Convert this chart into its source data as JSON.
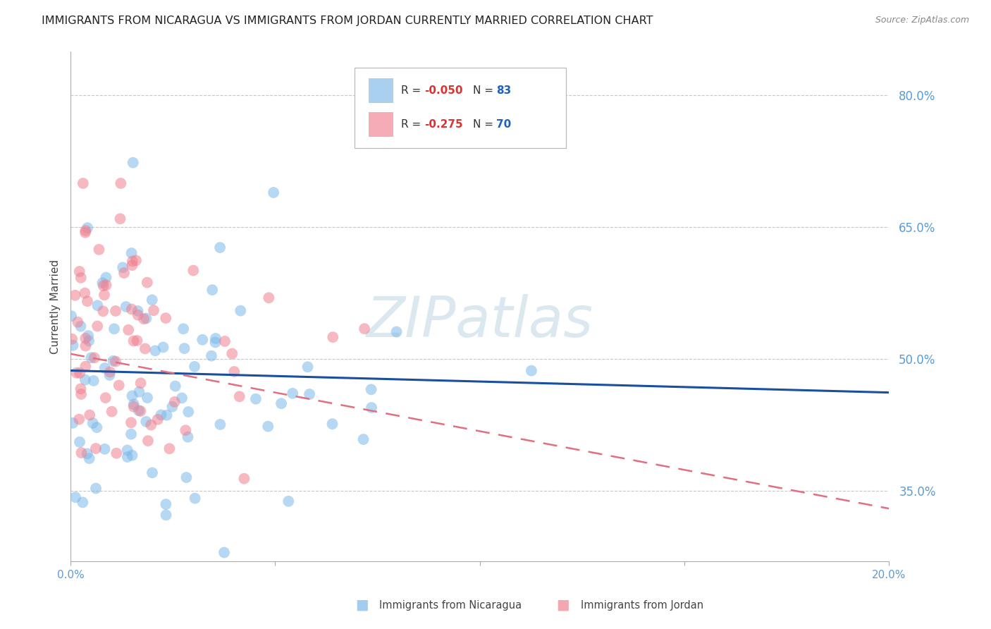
{
  "title": "IMMIGRANTS FROM NICARAGUA VS IMMIGRANTS FROM JORDAN CURRENTLY MARRIED CORRELATION CHART",
  "source": "Source: ZipAtlas.com",
  "ylabel": "Currently Married",
  "xlim": [
    0.0,
    0.2
  ],
  "ylim": [
    0.27,
    0.85
  ],
  "yticks": [
    0.35,
    0.5,
    0.65,
    0.8
  ],
  "ytick_labels": [
    "35.0%",
    "50.0%",
    "65.0%",
    "80.0%"
  ],
  "xticks": [
    0.0,
    0.05,
    0.1,
    0.15,
    0.2
  ],
  "xtick_labels": [
    "0.0%",
    "",
    "",
    "",
    "20.0%"
  ],
  "nicaragua_color": "#7db8e8",
  "jordan_color": "#f08090",
  "nicaragua_R": -0.05,
  "nicaragua_N": 83,
  "jordan_R": -0.275,
  "jordan_N": 70,
  "tick_color": "#5b9bd5",
  "grid_color": "#c8c8c8",
  "background_color": "#ffffff",
  "watermark": "ZIPatlas",
  "watermark_color": "#dce8f0",
  "title_fontsize": 11.5,
  "source_fontsize": 9,
  "legend_r1_text": "R = ",
  "legend_r1_val": "-0.050",
  "legend_r1_n_label": "N = ",
  "legend_r1_n_val": "83",
  "legend_r2_text": "R = ",
  "legend_r2_val": "-0.275",
  "legend_r2_n_label": "N = ",
  "legend_r2_n_val": "70",
  "r_color": "#e03030",
  "n_color": "#2060c0",
  "legend_label1": "Immigrants from Nicaragua",
  "legend_label2": "Immigrants from Jordan"
}
